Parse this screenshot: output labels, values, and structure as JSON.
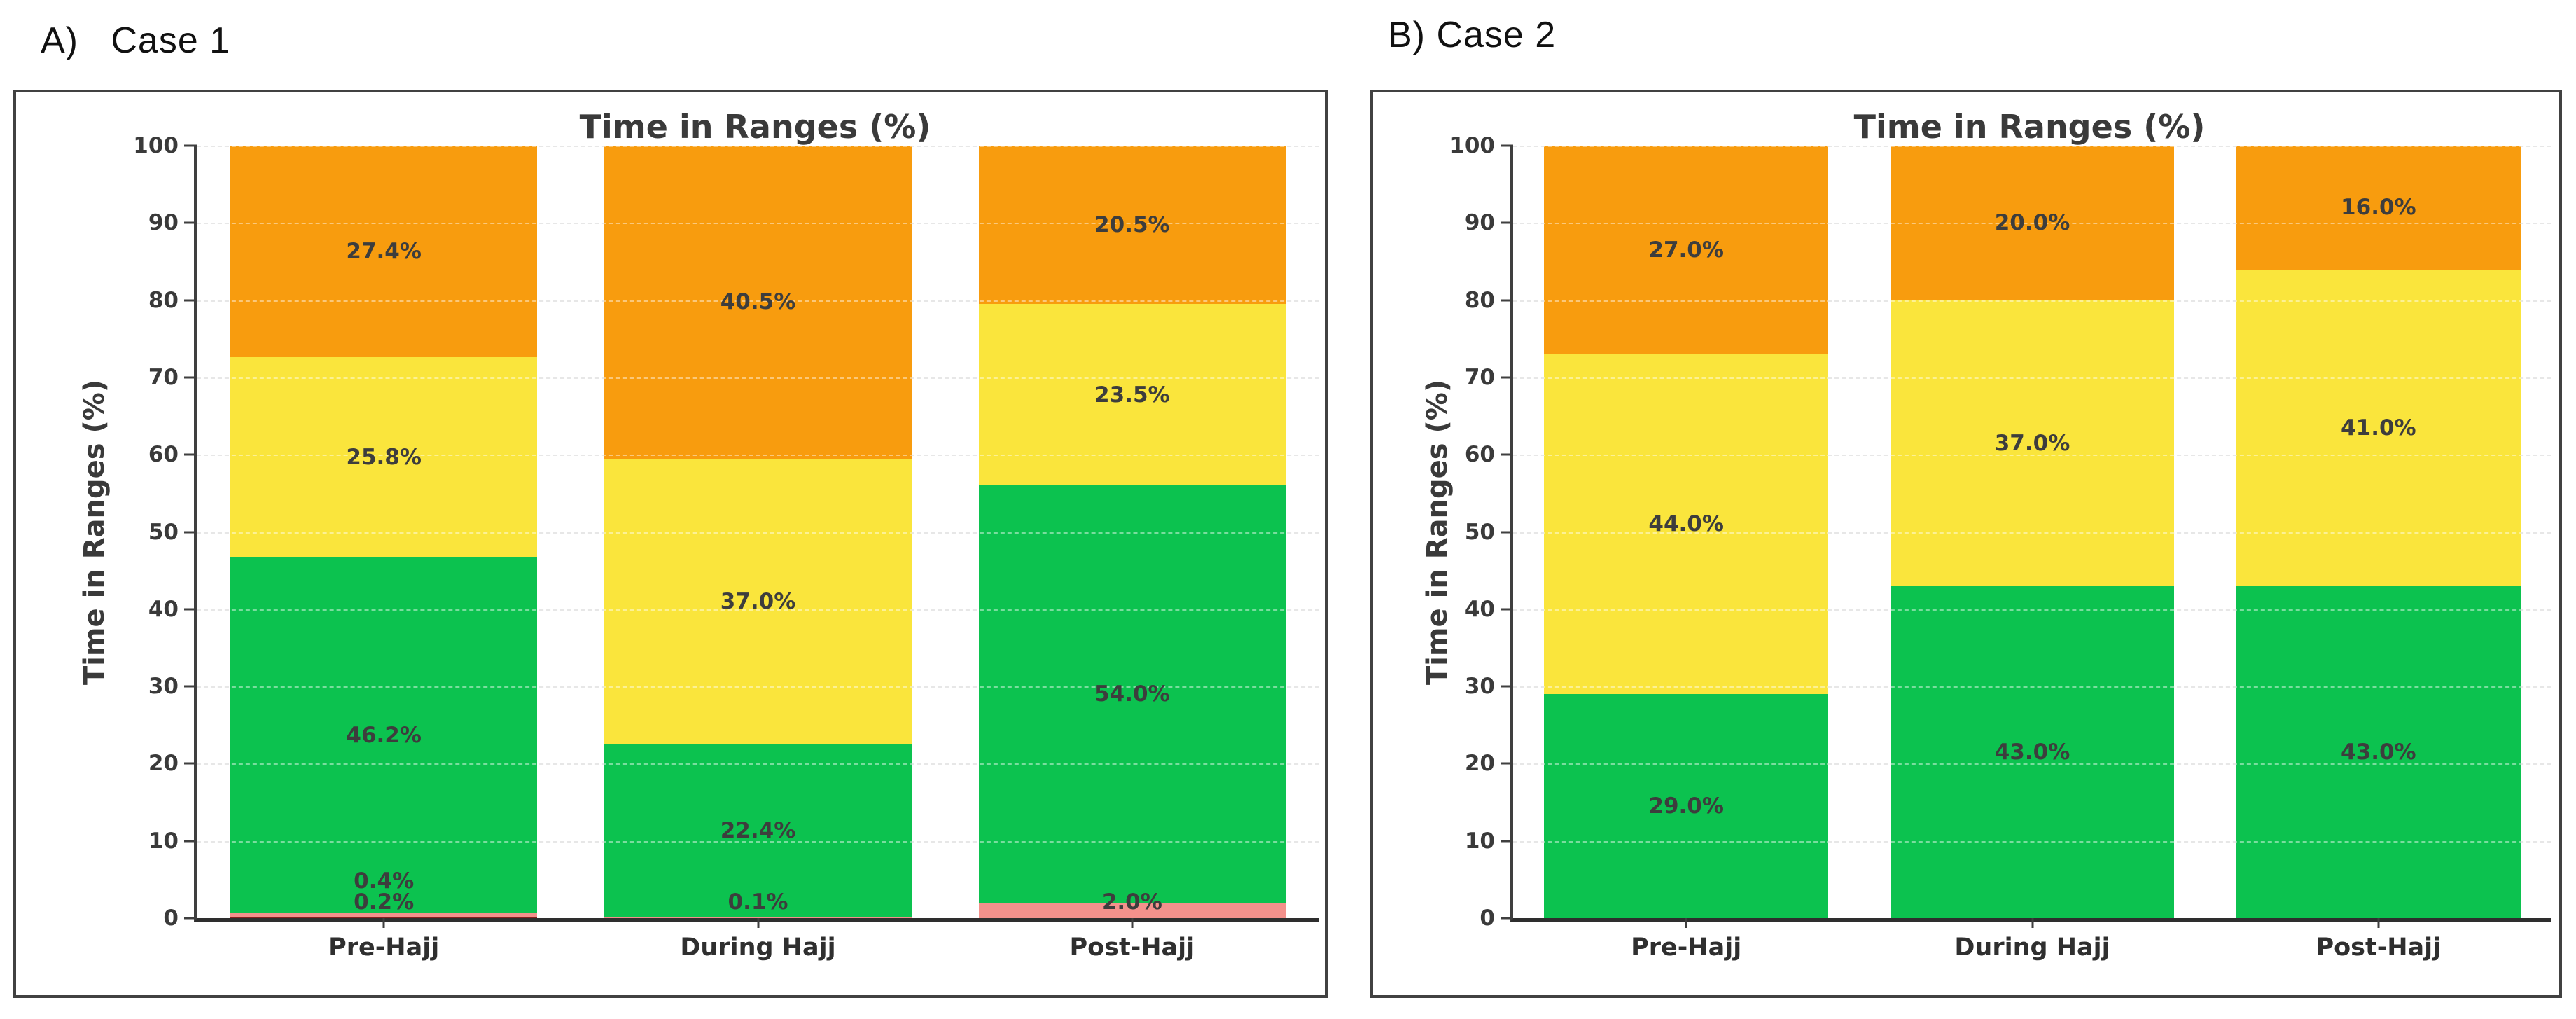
{
  "page": {
    "background": "#ffffff"
  },
  "panels": [
    {
      "header": "A)   Case 1"
    },
    {
      "header": "B) Case 2"
    }
  ],
  "chart_data": [
    {
      "type": "bar",
      "stacked": true,
      "title": "Time in Ranges (%)",
      "xlabel": "",
      "ylabel": "Time in Ranges (%)",
      "ylim": [
        0,
        100
      ],
      "yticks": [
        0,
        10,
        20,
        30,
        40,
        50,
        60,
        70,
        80,
        90,
        100
      ],
      "grid": "horizontal-dashed",
      "legend": "none",
      "categories": [
        "Pre-Hajj",
        "During Hajj",
        "Post-Hajj"
      ],
      "series": [
        {
          "name": "dark-red",
          "color": "#8a1f1f",
          "values": [
            0.2,
            0,
            0
          ]
        },
        {
          "name": "salmon",
          "color": "#f4918c",
          "values": [
            0.4,
            0.1,
            2.0
          ]
        },
        {
          "name": "green",
          "color": "#0cc24f",
          "values": [
            46.2,
            22.4,
            54.0
          ]
        },
        {
          "name": "yellow",
          "color": "#fae53c",
          "values": [
            25.8,
            37.0,
            23.5
          ]
        },
        {
          "name": "orange",
          "color": "#f89c0e",
          "values": [
            27.4,
            40.5,
            20.5
          ]
        }
      ],
      "bar_label_format": "one-decimal-percent"
    },
    {
      "type": "bar",
      "stacked": true,
      "title": "Time in Ranges (%)",
      "xlabel": "",
      "ylabel": "Time in Ranges (%)",
      "ylim": [
        0,
        100
      ],
      "yticks": [
        0,
        10,
        20,
        30,
        40,
        50,
        60,
        70,
        80,
        90,
        100
      ],
      "grid": "horizontal-dashed",
      "legend": "none",
      "categories": [
        "Pre-Hajj",
        "During Hajj",
        "Post-Hajj"
      ],
      "series": [
        {
          "name": "green",
          "color": "#0cc24f",
          "values": [
            29.0,
            43.0,
            43.0
          ]
        },
        {
          "name": "yellow",
          "color": "#fae53c",
          "values": [
            44.0,
            37.0,
            41.0
          ]
        },
        {
          "name": "orange",
          "color": "#f89c0e",
          "values": [
            27.0,
            20.0,
            16.0
          ]
        }
      ],
      "bar_label_format": "one-decimal-percent"
    }
  ]
}
